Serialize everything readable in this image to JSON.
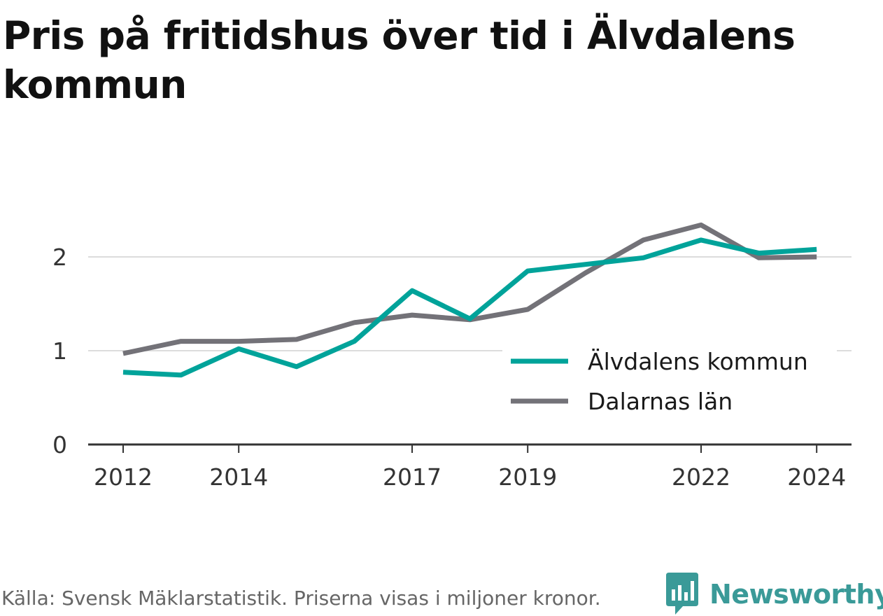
{
  "title": "Pris på fritidshus över tid i Älvdalens kommun",
  "footer": {
    "source": "Källa: Svensk Mäklarstatistik. Priserna visas i miljoner kronor."
  },
  "brand": {
    "name": "Newsworthy",
    "icon": "newsworthy-logo-icon",
    "color": "#3a9a98"
  },
  "chart_data": {
    "type": "line",
    "x": [
      2012,
      2013,
      2014,
      2015,
      2016,
      2017,
      2018,
      2019,
      2020,
      2021,
      2022,
      2023,
      2024
    ],
    "x_tick_labels": [
      "2012",
      "2014",
      "2017",
      "2019",
      "2022",
      "2024"
    ],
    "y_tick_labels": [
      "0",
      "1",
      "2"
    ],
    "ylim": [
      0,
      2.7
    ],
    "grid": true,
    "legend_position": "right",
    "series": [
      {
        "name": "Älvdalens kommun",
        "color": "#00a39a",
        "values": [
          0.77,
          0.74,
          1.02,
          0.83,
          1.1,
          1.64,
          1.34,
          1.85,
          1.92,
          1.99,
          2.18,
          2.04,
          2.08
        ]
      },
      {
        "name": "Dalarnas län",
        "color": "#737278",
        "values": [
          0.97,
          1.1,
          1.1,
          1.12,
          1.3,
          1.38,
          1.33,
          1.44,
          1.83,
          2.18,
          2.34,
          1.99,
          2.0
        ]
      }
    ]
  }
}
